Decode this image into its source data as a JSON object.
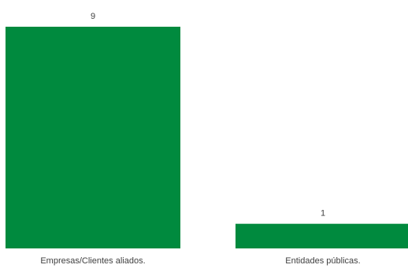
{
  "chart_data": {
    "type": "bar",
    "categories": [
      "Empresas/Clientes aliados.",
      "Entidades públicas."
    ],
    "values": [
      9,
      1
    ],
    "data_labels": [
      "9",
      "1"
    ],
    "ylim": [
      0,
      9
    ],
    "grid": false,
    "legend": "none",
    "bar_color": "#008A3E"
  }
}
